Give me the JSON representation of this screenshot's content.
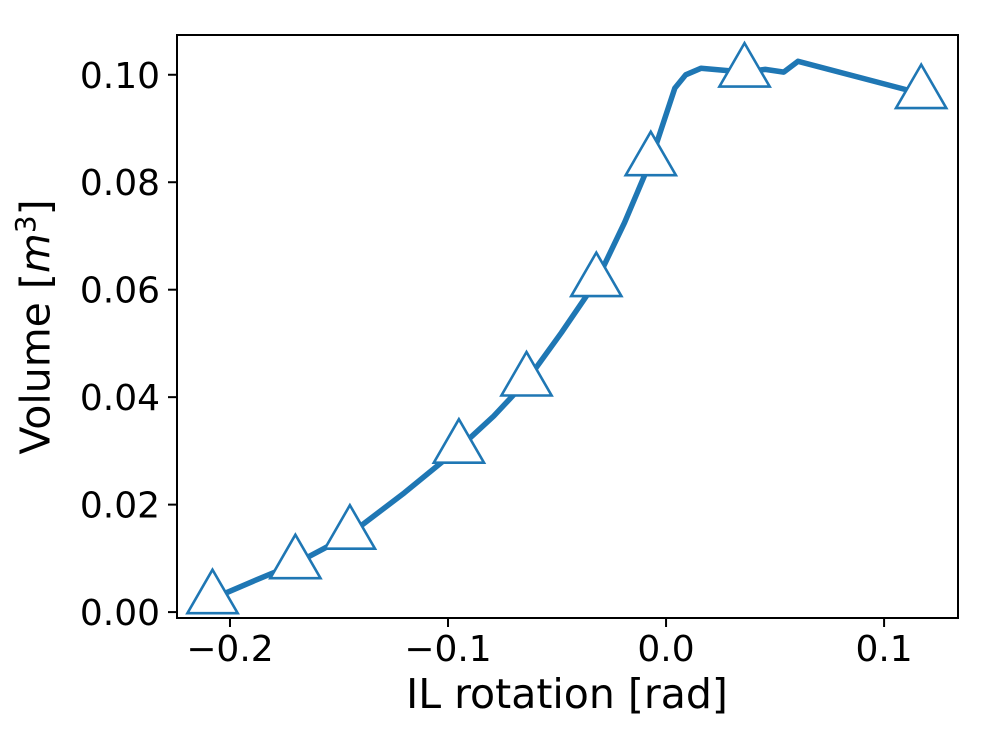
{
  "figure": {
    "background": "#ffffff"
  },
  "chart_data": {
    "type": "line",
    "title": "",
    "xlabel": "IL rotation [rad]",
    "ylabel": "Volume [m³]",
    "ylabel_prefix": "Volume [",
    "ylabel_unit_base": "m",
    "ylabel_unit_exp": "3",
    "ylabel_suffix": "]",
    "xlim": [
      -0.2243,
      0.1339
    ],
    "ylim": [
      -0.0011,
      0.1074
    ],
    "x_ticks": [
      -0.2,
      -0.1,
      0.0,
      0.1
    ],
    "x_tick_labels": [
      "−0.2",
      "−0.1",
      "0.0",
      "0.1"
    ],
    "y_ticks": [
      0.0,
      0.02,
      0.04,
      0.06,
      0.08,
      0.1
    ],
    "y_tick_labels": [
      "0.00",
      "0.02",
      "0.04",
      "0.06",
      "0.08",
      "0.10"
    ],
    "grid": false,
    "legend": null,
    "series": [
      {
        "name": "volume-vs-rotation",
        "color": "#1f77b4",
        "line_width": 5.5,
        "marker": "triangle-up",
        "marker_face": "#ffffff",
        "marker_edge": "#1f77b4",
        "marker_size": 29,
        "line": [
          [
            -0.208,
            0.0025
          ],
          [
            -0.189,
            0.0058
          ],
          [
            -0.17,
            0.009
          ],
          [
            -0.157,
            0.0118
          ],
          [
            -0.145,
            0.0145
          ],
          [
            -0.12,
            0.0222
          ],
          [
            -0.095,
            0.0305
          ],
          [
            -0.079,
            0.0365
          ],
          [
            -0.064,
            0.043
          ],
          [
            -0.048,
            0.052
          ],
          [
            -0.032,
            0.0615
          ],
          [
            -0.019,
            0.0725
          ],
          [
            -0.007,
            0.084
          ],
          [
            0.004,
            0.0975
          ],
          [
            0.009,
            0.1
          ],
          [
            0.016,
            0.1012
          ],
          [
            0.036,
            0.1005
          ],
          [
            0.0455,
            0.101
          ],
          [
            0.054,
            0.1005
          ],
          [
            0.0605,
            0.1025
          ],
          [
            0.117,
            0.0965
          ]
        ],
        "markers": [
          [
            -0.208,
            0.0025
          ],
          [
            -0.17,
            0.009
          ],
          [
            -0.145,
            0.0145
          ],
          [
            -0.095,
            0.0305
          ],
          [
            -0.064,
            0.043
          ],
          [
            -0.032,
            0.0615
          ],
          [
            -0.007,
            0.084
          ],
          [
            0.036,
            0.1005
          ],
          [
            0.117,
            0.0965
          ]
        ]
      }
    ],
    "style": {
      "spine_color": "#000000",
      "spine_width": 2,
      "tick_color": "#000000",
      "tick_length": 9,
      "tick_width": 2,
      "tick_font_size": 36,
      "label_font_size": 41,
      "plot_background": "#ffffff"
    }
  }
}
